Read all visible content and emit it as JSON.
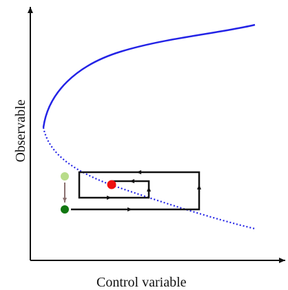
{
  "figure": {
    "x_axis_label": "Control variable",
    "y_axis_label": "Observable"
  },
  "colors": {
    "axis": "#111111",
    "stable_branch": "#2323e6",
    "unstable_branch": "#2323e6",
    "loop_path": "#111111",
    "current_state": "#ee1111",
    "start_state": "#117711",
    "previous_state": "#b8dc8a",
    "transition_arrow": "#8a7070"
  },
  "legend": {
    "stable_branch_style": "solid",
    "unstable_branch_style": "dotted"
  }
}
